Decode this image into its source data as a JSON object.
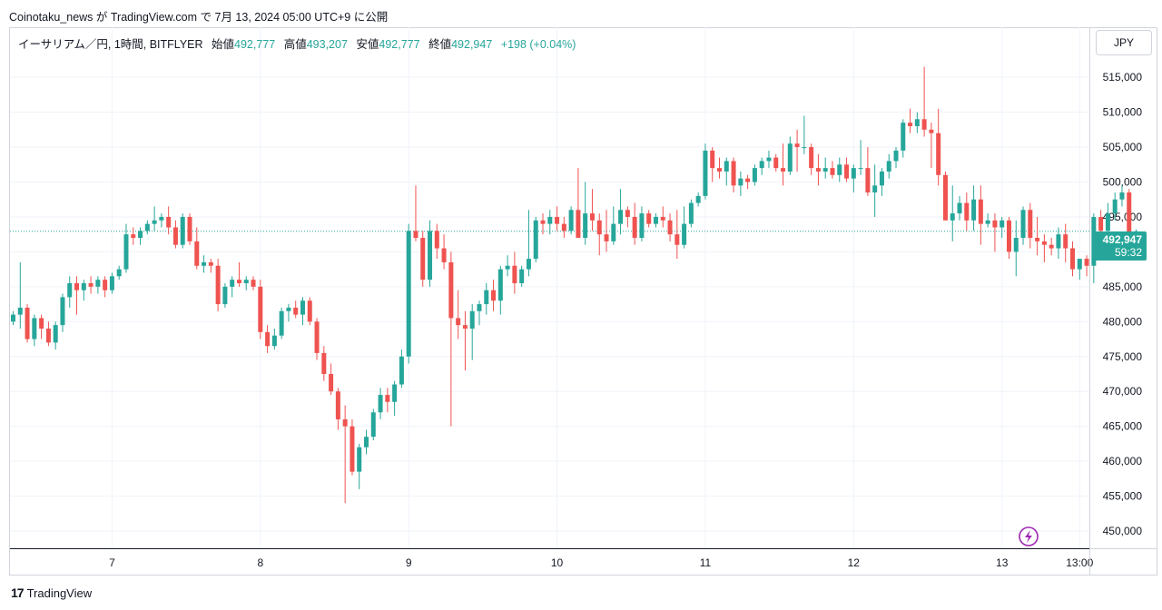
{
  "publish_line": "Coinotaku_news が TradingView.com で 7月 13, 2024 05:00 UTC+9 に公開",
  "legend": {
    "symbol": "イーサリアム／円, 1時間, BITFLYER",
    "open_label": "始値",
    "open": "492,777",
    "high_label": "高値",
    "high": "493,207",
    "low_label": "安値",
    "low": "492,777",
    "close_label": "終値",
    "close": "492,947",
    "change": "+198 (+0.04%)"
  },
  "currency": "JPY",
  "price_tag": {
    "price": "492,947",
    "countdown": "59:32"
  },
  "footer_brand": "TradingView",
  "colors": {
    "up": "#26a69a",
    "down": "#ef5350",
    "grid": "#f0f3fa",
    "lightning": "#9c27b0"
  },
  "chart_data": {
    "type": "candlestick",
    "y_ticks": [
      "450,000",
      "455,000",
      "460,000",
      "465,000",
      "470,000",
      "475,000",
      "480,000",
      "485,000",
      "490,000",
      "495,000",
      "500,000",
      "505,000",
      "510,000",
      "515,000"
    ],
    "x_ticks": [
      {
        "label": "7",
        "idx": 14
      },
      {
        "label": "8",
        "idx": 35
      },
      {
        "label": "9",
        "idx": 56
      },
      {
        "label": "10",
        "idx": 77
      },
      {
        "label": "11",
        "idx": 98
      },
      {
        "label": "12",
        "idx": 119
      },
      {
        "label": "13",
        "idx": 140
      },
      {
        "label": "13:00",
        "idx": 151
      }
    ],
    "ylim": [
      448500,
      518500
    ],
    "grid": true,
    "last_price": 492947,
    "candles": [
      [
        480000,
        481500,
        479500,
        481000
      ],
      [
        481000,
        488500,
        479000,
        482000
      ],
      [
        482000,
        482500,
        477000,
        477500
      ],
      [
        477500,
        481000,
        476500,
        480500
      ],
      [
        480500,
        481000,
        477500,
        479000
      ],
      [
        479000,
        480000,
        476500,
        477000
      ],
      [
        477000,
        480000,
        476000,
        479500
      ],
      [
        479500,
        484000,
        478500,
        483500
      ],
      [
        483500,
        486500,
        482000,
        485500
      ],
      [
        485500,
        486500,
        481000,
        484500
      ],
      [
        484500,
        486000,
        483000,
        485500
      ],
      [
        485500,
        486500,
        484000,
        485000
      ],
      [
        485000,
        486500,
        484000,
        486000
      ],
      [
        486000,
        486500,
        483500,
        484500
      ],
      [
        484500,
        487000,
        484000,
        486500
      ],
      [
        486500,
        488000,
        486000,
        487500
      ],
      [
        487500,
        494000,
        487000,
        492500
      ],
      [
        492500,
        493500,
        491000,
        492000
      ],
      [
        492000,
        493500,
        491000,
        493000
      ],
      [
        493000,
        494500,
        492500,
        494000
      ],
      [
        494000,
        496500,
        493000,
        494500
      ],
      [
        494500,
        495500,
        493500,
        495000
      ],
      [
        495000,
        496500,
        492500,
        493500
      ],
      [
        493500,
        494500,
        490500,
        491000
      ],
      [
        491000,
        495500,
        490500,
        495000
      ],
      [
        495000,
        495500,
        491000,
        491500
      ],
      [
        491500,
        493500,
        487500,
        488000
      ],
      [
        488000,
        489500,
        487000,
        488500
      ],
      [
        488500,
        489000,
        487000,
        488000
      ],
      [
        488000,
        489000,
        481500,
        482500
      ],
      [
        482500,
        485500,
        482000,
        485000
      ],
      [
        485000,
        486500,
        483500,
        486000
      ],
      [
        486000,
        488500,
        485000,
        485500
      ],
      [
        485500,
        486500,
        484500,
        486000
      ],
      [
        486000,
        486500,
        484500,
        485000
      ],
      [
        485000,
        486000,
        477500,
        478500
      ],
      [
        478500,
        479500,
        475500,
        476500
      ],
      [
        476500,
        479000,
        476000,
        478000
      ],
      [
        478000,
        482000,
        477500,
        481500
      ],
      [
        481500,
        482500,
        480000,
        482000
      ],
      [
        482000,
        483000,
        480500,
        481000
      ],
      [
        481000,
        483500,
        479500,
        483000
      ],
      [
        483000,
        483500,
        479500,
        480000
      ],
      [
        480000,
        480500,
        474500,
        475500
      ],
      [
        475500,
        476500,
        471500,
        472500
      ],
      [
        472500,
        474000,
        469500,
        470000
      ],
      [
        470000,
        470500,
        464500,
        466000
      ],
      [
        466000,
        468000,
        454000,
        465000
      ],
      [
        465000,
        466000,
        458000,
        458500
      ],
      [
        458500,
        462500,
        456000,
        462000
      ],
      [
        462000,
        464500,
        461000,
        463500
      ],
      [
        463500,
        467500,
        463000,
        467000
      ],
      [
        467000,
        470500,
        466000,
        469500
      ],
      [
        469500,
        470500,
        467000,
        468500
      ],
      [
        468500,
        471500,
        466500,
        471000
      ],
      [
        471000,
        476000,
        470500,
        475000
      ],
      [
        475000,
        494000,
        474000,
        493000
      ],
      [
        493000,
        499500,
        491500,
        492000
      ],
      [
        492000,
        493000,
        485000,
        486000
      ],
      [
        486000,
        494500,
        485000,
        493000
      ],
      [
        493000,
        494000,
        489000,
        490500
      ],
      [
        490500,
        492500,
        487500,
        488500
      ],
      [
        488500,
        490000,
        465000,
        480500
      ],
      [
        480500,
        484500,
        477500,
        479500
      ],
      [
        479500,
        481500,
        473000,
        479000
      ],
      [
        479000,
        482500,
        474500,
        481500
      ],
      [
        481500,
        483000,
        479500,
        482500
      ],
      [
        482500,
        485500,
        481000,
        484500
      ],
      [
        484500,
        486000,
        481500,
        483000
      ],
      [
        483000,
        488000,
        481000,
        487500
      ],
      [
        487500,
        489500,
        486500,
        488000
      ],
      [
        488000,
        490000,
        484000,
        485500
      ],
      [
        485500,
        488000,
        485000,
        487500
      ],
      [
        487500,
        496000,
        486500,
        489000
      ],
      [
        489000,
        495000,
        488500,
        494500
      ],
      [
        494500,
        495500,
        492500,
        494000
      ],
      [
        494000,
        496000,
        492500,
        495000
      ],
      [
        495000,
        496500,
        493000,
        494000
      ],
      [
        494000,
        495000,
        492000,
        493000
      ],
      [
        493000,
        496500,
        492500,
        496000
      ],
      [
        496000,
        502000,
        492500,
        492000
      ],
      [
        492000,
        500000,
        491000,
        495500
      ],
      [
        495500,
        499000,
        493000,
        494500
      ],
      [
        494500,
        495500,
        489500,
        492500
      ],
      [
        492500,
        496000,
        490000,
        491500
      ],
      [
        491500,
        496500,
        491000,
        494000
      ],
      [
        494000,
        499000,
        492500,
        496000
      ],
      [
        496000,
        496500,
        493500,
        495000
      ],
      [
        495000,
        497000,
        491000,
        492000
      ],
      [
        492000,
        496500,
        491500,
        495500
      ],
      [
        495500,
        496000,
        493500,
        494000
      ],
      [
        494000,
        495500,
        493500,
        495000
      ],
      [
        495000,
        496500,
        493500,
        494500
      ],
      [
        494500,
        495500,
        491500,
        492500
      ],
      [
        492500,
        496000,
        489000,
        491000
      ],
      [
        491000,
        496500,
        490500,
        494000
      ],
      [
        494000,
        497500,
        493500,
        497000
      ],
      [
        497000,
        498500,
        496500,
        498000
      ],
      [
        498000,
        505500,
        497500,
        504500
      ],
      [
        504500,
        505000,
        500000,
        502000
      ],
      [
        502000,
        503500,
        500500,
        501500
      ],
      [
        501500,
        503500,
        499500,
        503000
      ],
      [
        503000,
        503500,
        498500,
        499500
      ],
      [
        499500,
        501500,
        498000,
        500500
      ],
      [
        500500,
        501000,
        499000,
        500000
      ],
      [
        500000,
        502500,
        499500,
        502000
      ],
      [
        502000,
        503500,
        501000,
        503000
      ],
      [
        503000,
        504500,
        502000,
        503500
      ],
      [
        503500,
        504000,
        501500,
        502000
      ],
      [
        502000,
        505500,
        499500,
        501500
      ],
      [
        501500,
        506500,
        501000,
        505500
      ],
      [
        505500,
        507500,
        501500,
        505000
      ],
      [
        505000,
        509500,
        504000,
        505000
      ],
      [
        505000,
        505500,
        501000,
        502000
      ],
      [
        502000,
        504000,
        499500,
        501500
      ],
      [
        501500,
        503500,
        500500,
        502000
      ],
      [
        502000,
        503000,
        500500,
        501000
      ],
      [
        501000,
        503500,
        500000,
        502500
      ],
      [
        502500,
        503500,
        500000,
        500500
      ],
      [
        500500,
        502500,
        498500,
        502000
      ],
      [
        502000,
        506000,
        501000,
        502000
      ],
      [
        502000,
        505000,
        498000,
        498500
      ],
      [
        498500,
        502500,
        495000,
        499500
      ],
      [
        499500,
        502000,
        498000,
        501500
      ],
      [
        501500,
        504000,
        500500,
        503000
      ],
      [
        503000,
        505000,
        502000,
        504500
      ],
      [
        504500,
        509000,
        503500,
        508500
      ],
      [
        508500,
        510500,
        507000,
        508000
      ],
      [
        508000,
        510000,
        507000,
        509000
      ],
      [
        509000,
        516500,
        506500,
        507500
      ],
      [
        507500,
        508500,
        502000,
        507000
      ],
      [
        507000,
        510500,
        499500,
        501000
      ],
      [
        501000,
        501500,
        495000,
        494500
      ],
      [
        494500,
        499500,
        491500,
        495500
      ],
      [
        495500,
        498000,
        494500,
        497000
      ],
      [
        497000,
        498500,
        493000,
        494500
      ],
      [
        494500,
        499500,
        493000,
        497500
      ],
      [
        497500,
        499500,
        491000,
        494000
      ],
      [
        494000,
        495500,
        493500,
        494500
      ],
      [
        494500,
        495500,
        490000,
        493500
      ],
      [
        493500,
        495000,
        492000,
        494500
      ],
      [
        494500,
        495000,
        489000,
        490000
      ],
      [
        490000,
        494500,
        486500,
        492000
      ],
      [
        492000,
        496500,
        491000,
        496000
      ],
      [
        496000,
        497000,
        490500,
        492000
      ],
      [
        492000,
        495000,
        489500,
        491500
      ],
      [
        491500,
        492500,
        488500,
        491000
      ],
      [
        491000,
        492000,
        489500,
        490500
      ],
      [
        490500,
        493500,
        489000,
        492500
      ],
      [
        492500,
        494000,
        488500,
        490500
      ],
      [
        490500,
        491500,
        486500,
        487500
      ],
      [
        487500,
        489000,
        486000,
        489000
      ],
      [
        489000,
        489500,
        486500,
        488000
      ],
      [
        488000,
        495500,
        485500,
        495000
      ],
      [
        495000,
        496000,
        491500,
        493000
      ],
      [
        493000,
        497000,
        492500,
        495500
      ],
      [
        495500,
        498500,
        494500,
        497500
      ],
      [
        497500,
        499500,
        496500,
        498500
      ],
      [
        498500,
        499000,
        492500,
        492800
      ],
      [
        492777,
        493207,
        492777,
        492947
      ]
    ]
  }
}
